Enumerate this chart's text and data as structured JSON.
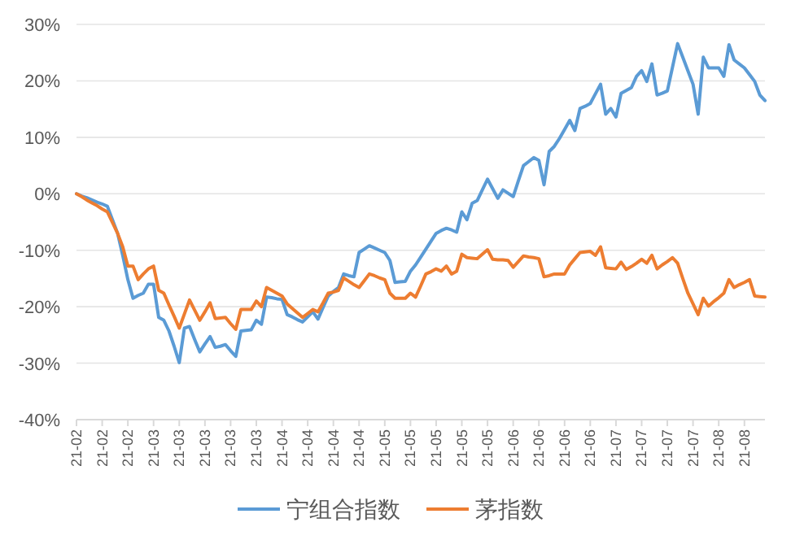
{
  "chart_data": {
    "type": "line",
    "categories": [
      "21-02",
      null,
      null,
      null,
      null,
      "21-02",
      null,
      null,
      null,
      null,
      "21-02",
      null,
      null,
      null,
      null,
      "21-03",
      null,
      null,
      null,
      null,
      "21-03",
      null,
      null,
      null,
      null,
      "21-03",
      null,
      null,
      null,
      null,
      "21-03",
      null,
      null,
      null,
      null,
      "21-03",
      null,
      null,
      null,
      null,
      "21-04",
      null,
      null,
      null,
      null,
      "21-04",
      null,
      null,
      null,
      null,
      "21-04",
      null,
      null,
      null,
      null,
      "21-04",
      null,
      null,
      null,
      null,
      "21-05",
      null,
      null,
      null,
      null,
      "21-05",
      null,
      null,
      null,
      null,
      "21-05",
      null,
      null,
      null,
      null,
      "21-05",
      null,
      null,
      null,
      null,
      "21-05",
      null,
      null,
      null,
      null,
      "21-06",
      null,
      null,
      null,
      null,
      "21-06",
      null,
      null,
      null,
      null,
      "21-06",
      null,
      null,
      null,
      null,
      "21-06",
      null,
      null,
      null,
      null,
      "21-07",
      null,
      null,
      null,
      null,
      "21-07",
      null,
      null,
      null,
      null,
      "21-07",
      null,
      null,
      null,
      null,
      "21-07",
      null,
      null,
      null,
      null,
      "21-08",
      null,
      null,
      null,
      null,
      "21-08",
      null,
      null,
      null,
      null
    ],
    "series": [
      {
        "name": "宁组合指数",
        "color": "#5b9bd5",
        "values": [
          0,
          -0.4,
          -0.7,
          -1.1,
          -1.5,
          -1.8,
          -2.2,
          -4.6,
          -7,
          -10.9,
          -15.2,
          -18.5,
          -18,
          -17.6,
          -16,
          -16,
          -21.9,
          -22.4,
          -24.3,
          -27,
          -29.9,
          -23.8,
          -23.5,
          -25.8,
          -28,
          -26.6,
          -25.3,
          -27.2,
          -27,
          -26.7,
          -27.8,
          -28.8,
          -24.3,
          -24.2,
          -24.1,
          -22.4,
          -23.1,
          -18.3,
          -18.4,
          -18.6,
          -18.7,
          -21.4,
          -21.8,
          -22.3,
          -22.7,
          -21.8,
          -20.9,
          -22.2,
          -20.1,
          -18.1,
          -17.3,
          -16.6,
          -14.2,
          -14.5,
          -14.7,
          -10.4,
          -9.8,
          -9.2,
          -9.6,
          -10,
          -10.4,
          -11.8,
          -15.7,
          -15.6,
          -15.5,
          -13.7,
          -12.6,
          -11.2,
          -9.8,
          -8.4,
          -7,
          -6.5,
          -6.1,
          -6.4,
          -6.8,
          -3.2,
          -4.6,
          -1.7,
          -1.2,
          0.7,
          2.6,
          0.9,
          -0.8,
          0.7,
          0.1,
          -0.5,
          2.3,
          5,
          5.7,
          6.4,
          5.9,
          1.6,
          7.5,
          8.4,
          9.8,
          11.4,
          13,
          11.2,
          15.1,
          15.5,
          16,
          17.7,
          19.4,
          14.1,
          15.1,
          13.6,
          17.8,
          18.3,
          18.8,
          20.8,
          21.8,
          19.9,
          23,
          17.5,
          17.8,
          18.2,
          22.4,
          26.6,
          24.2,
          21.8,
          19.4,
          14.1,
          24.2,
          22.3,
          22.3,
          22.3,
          20.8,
          26.4,
          23.7,
          23,
          22.3,
          21.1,
          19.9,
          17.5,
          16.5
        ]
      },
      {
        "name": "茅指数",
        "color": "#ed7d31",
        "values": [
          0,
          -0.5,
          -1.1,
          -1.6,
          -2.1,
          -2.7,
          -3.2,
          -5.1,
          -7,
          -9.4,
          -12.8,
          -12.8,
          -15.2,
          -14.2,
          -13.3,
          -12.8,
          -17.1,
          -17.6,
          -19.7,
          -21.7,
          -23.8,
          -21.3,
          -18.8,
          -20.6,
          -22.4,
          -20.9,
          -19.3,
          -22.1,
          -22,
          -21.9,
          -23,
          -24,
          -20.5,
          -20.5,
          -20.5,
          -19,
          -20,
          -16.6,
          -17.1,
          -17.6,
          -18.1,
          -19.5,
          -20.3,
          -21.1,
          -21.9,
          -21.2,
          -20.5,
          -20.9,
          -19.3,
          -17.6,
          -17.4,
          -17.1,
          -14.9,
          -15.5,
          -16.1,
          -16.6,
          -15.4,
          -14.2,
          -14.5,
          -14.9,
          -15.2,
          -17.6,
          -18.5,
          -18.5,
          -18.5,
          -17.6,
          -18.3,
          -16.3,
          -14.2,
          -13.8,
          -13.3,
          -13.7,
          -12.8,
          -14.2,
          -13.7,
          -10.7,
          -11.3,
          -11.4,
          -11.5,
          -10.7,
          -9.9,
          -11.6,
          -11.7,
          -11.7,
          -11.8,
          -13,
          -12,
          -11,
          -11.2,
          -11.3,
          -11.5,
          -14.7,
          -14.5,
          -14.2,
          -14.2,
          -14.2,
          -12.6,
          -11.5,
          -10.4,
          -10.3,
          -10.2,
          -10.9,
          -9.4,
          -13.1,
          -13.2,
          -13.3,
          -12.1,
          -13.4,
          -12.9,
          -12.3,
          -11.6,
          -12.3,
          -10.9,
          -13.3,
          -12.6,
          -12,
          -11.3,
          -12.3,
          -15,
          -17.6,
          -19.5,
          -21.4,
          -18.5,
          -19.9,
          -19.1,
          -18.4,
          -17.6,
          -15.2,
          -16.6,
          -16.1,
          -15.7,
          -15.2,
          -18.1,
          -18.2,
          -18.3
        ]
      }
    ],
    "ylim": [
      -40,
      30
    ],
    "yticks": [
      {
        "value": -40,
        "label": "-40%"
      },
      {
        "value": -30,
        "label": "-30%"
      },
      {
        "value": -20,
        "label": "-20%"
      },
      {
        "value": -10,
        "label": "-10%"
      },
      {
        "value": 0,
        "label": "0%"
      },
      {
        "value": 10,
        "label": "10%"
      },
      {
        "value": 20,
        "label": "20%"
      },
      {
        "value": 30,
        "label": "30%"
      }
    ],
    "grid": "y",
    "legend": "bottom",
    "marker": "none",
    "line_style": "solid"
  }
}
